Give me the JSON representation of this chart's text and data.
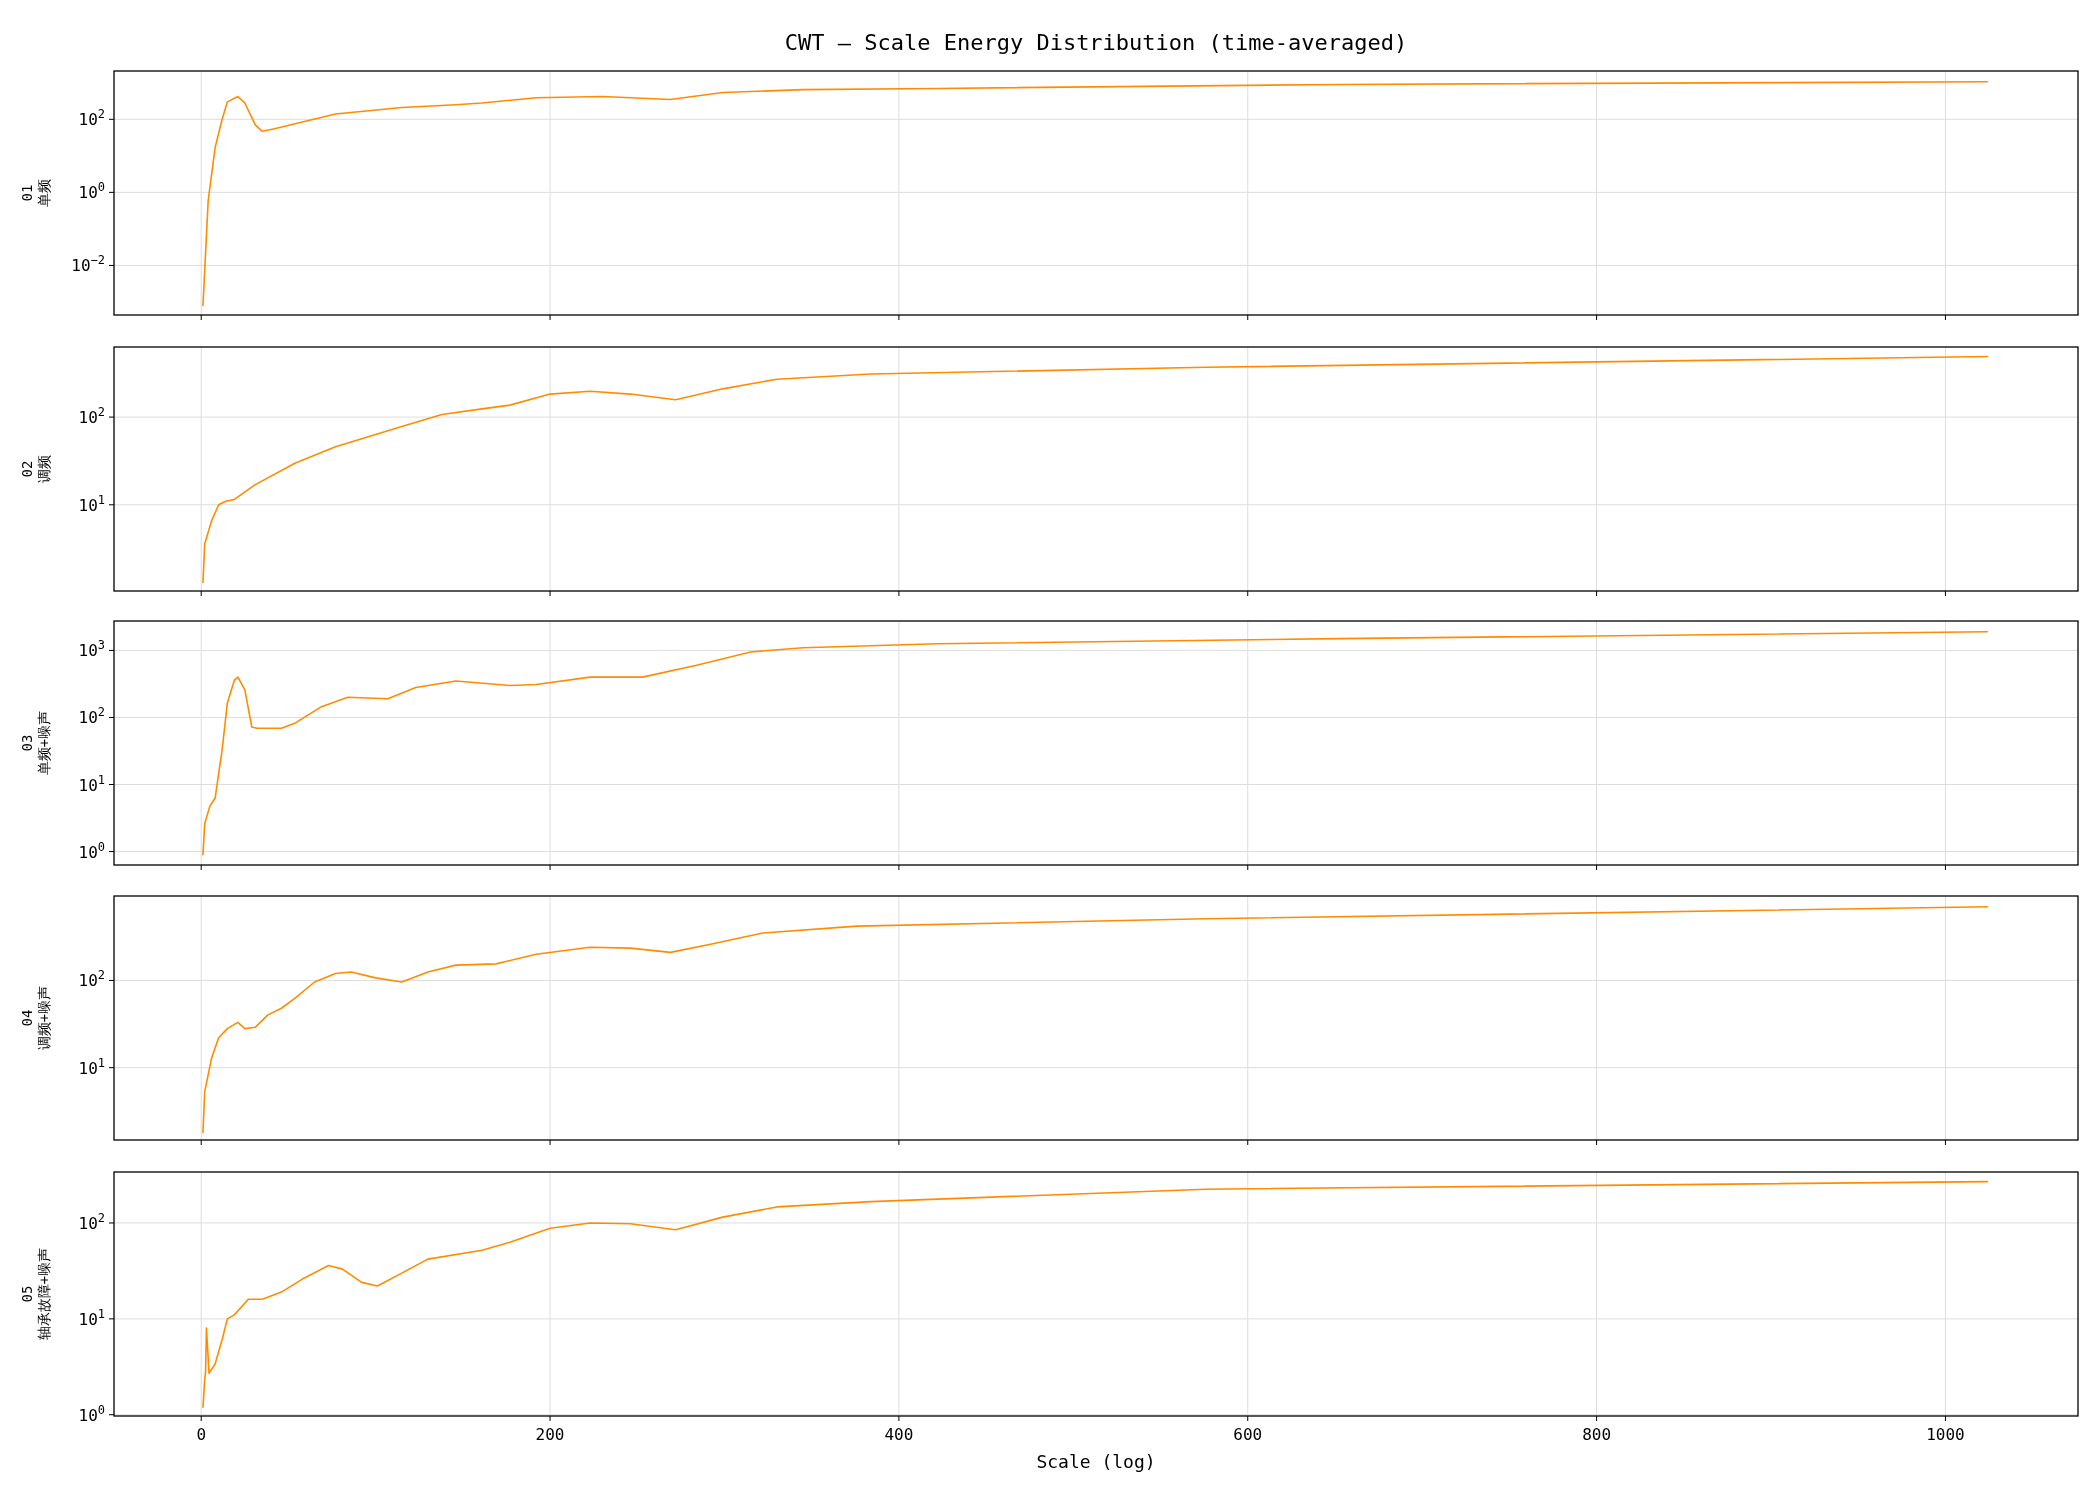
{
  "chart_data": [
    {
      "type": "line",
      "title": "CWT — Scale Energy Distribution (time-averaged)",
      "ylabel": "01\n单频",
      "log": "y",
      "grid": true,
      "tick_labels": "y",
      "xlim": [
        -50,
        1076
      ],
      "xticks": [
        0,
        200,
        400,
        600,
        800,
        1000
      ],
      "ylim": [
        0.00044,
        2100
      ],
      "yticks": [
        {
          "value": 0.01,
          "label": "10$^{−2}$"
        },
        {
          "value": 1,
          "label": "10$^{0}$"
        },
        {
          "value": 100,
          "label": "10$^{2}$"
        }
      ],
      "series": [
        {
          "color": "#ff8c00",
          "x": [
            1,
            4,
            8,
            12,
            15,
            21,
            25,
            31,
            35,
            42,
            77,
            115,
            146,
            161,
            192,
            230,
            269,
            299,
            345,
            422,
            652,
            1024
          ],
          "values": [
            0.0008,
            0.6,
            17,
            100,
            300,
            420,
            280,
            70,
            47,
            55,
            140,
            210,
            250,
            280,
            390,
            420,
            350,
            540,
            650,
            700,
            900,
            1070
          ]
        }
      ]
    },
    {
      "type": "line",
      "ylabel": "02\n调频",
      "log": "y",
      "grid": true,
      "tick_labels": "y",
      "xlim": [
        -50,
        1076
      ],
      "xticks": [
        0,
        200,
        400,
        600,
        800,
        1000
      ],
      "ylim": [
        1.04,
        630
      ],
      "yticks": [
        {
          "value": 10,
          "label": "10$^{1}$"
        },
        {
          "value": 100,
          "label": "10$^{2}$"
        }
      ],
      "series": [
        {
          "color": "#ff8c00",
          "x": [
            1,
            2,
            6,
            10,
            14,
            19,
            31,
            54,
            77,
            115,
            138,
            161,
            177,
            200,
            223,
            246,
            272,
            299,
            330,
            384,
            576,
            1024
          ],
          "values": [
            1.3,
            3.6,
            6.6,
            10,
            11,
            11.5,
            17,
            30,
            46,
            78,
            107,
            124,
            137,
            183,
            197,
            183,
            158,
            210,
            270,
            310,
            370,
            490
          ]
        }
      ]
    },
    {
      "type": "line",
      "ylabel": "03\n单频+噪声",
      "log": "y",
      "grid": true,
      "tick_labels": "y",
      "xlim": [
        -50,
        1076
      ],
      "xticks": [
        0,
        200,
        400,
        600,
        800,
        1000
      ],
      "ylim": [
        0.63,
        2750
      ],
      "yticks": [
        {
          "value": 1,
          "label": "10$^{0}$"
        },
        {
          "value": 10,
          "label": "10$^{1}$"
        },
        {
          "value": 100,
          "label": "10$^{2}$"
        },
        {
          "value": 1000,
          "label": "10$^{3}$"
        }
      ],
      "series": [
        {
          "color": "#ff8c00",
          "x": [
            1,
            2,
            5,
            8,
            12,
            15,
            19,
            21,
            25,
            29,
            32,
            46,
            54,
            69,
            84,
            107,
            123,
            146,
            177,
            192,
            223,
            253,
            284,
            315,
            345,
            422,
            652,
            1024
          ],
          "values": [
            0.9,
            2.6,
            4.8,
            6.3,
            33,
            165,
            360,
            400,
            260,
            72,
            69,
            69,
            83,
            145,
            200,
            190,
            280,
            350,
            300,
            310,
            400,
            400,
            600,
            950,
            1100,
            1260,
            1500,
            1900
          ]
        }
      ]
    },
    {
      "type": "line",
      "ylabel": "04\n调频+噪声",
      "log": "y",
      "grid": true,
      "tick_labels": "y",
      "xlim": [
        -50,
        1076
      ],
      "xticks": [
        0,
        200,
        400,
        600,
        800,
        1000
      ],
      "ylim": [
        1.48,
        930
      ],
      "yticks": [
        {
          "value": 10,
          "label": "10$^{1}$"
        },
        {
          "value": 100,
          "label": "10$^{2}$"
        }
      ],
      "series": [
        {
          "color": "#ff8c00",
          "x": [
            1,
            2,
            6,
            10,
            15,
            21,
            25,
            31,
            38,
            46,
            54,
            65,
            77,
            86,
            100,
            115,
            130,
            146,
            169,
            192,
            223,
            246,
            269,
            292,
            322,
            376,
            576,
            1024
          ],
          "values": [
            1.8,
            5.3,
            13,
            22,
            28,
            33,
            28,
            29,
            40,
            48,
            63,
            96,
            120,
            125,
            107,
            96,
            125,
            150,
            155,
            200,
            240,
            235,
            210,
            260,
            350,
            420,
            510,
            700
          ]
        }
      ]
    },
    {
      "type": "line",
      "ylabel": "05\n轴承故障+噪声",
      "xlabel": "Scale (log)",
      "log": "y",
      "grid": true,
      "xlim": [
        -50,
        1076
      ],
      "xticks": [
        0,
        200,
        400,
        600,
        800,
        1000
      ],
      "ylim": [
        0.97,
        340
      ],
      "yticks": [
        {
          "value": 1,
          "label": "10$^{0}$"
        },
        {
          "value": 10,
          "label": "10$^{1}$"
        },
        {
          "value": 100,
          "label": "10$^{2}$"
        }
      ],
      "series": [
        {
          "color": "#ff8c00",
          "x": [
            1,
            2,
            2.5,
            3,
            4.5,
            8,
            12,
            15,
            19,
            27,
            35,
            46,
            58,
            73,
            81,
            92,
            101,
            115,
            130,
            161,
            177,
            200,
            223,
            246,
            272,
            299,
            330,
            384,
            576,
            1024
          ],
          "values": [
            1.2,
            2.3,
            2.8,
            8,
            2.7,
            3.4,
            6.1,
            10,
            11,
            16,
            16,
            19,
            26,
            36,
            33,
            24,
            22,
            30,
            42,
            52,
            63,
            88,
            100,
            98,
            85,
            115,
            147,
            167,
            225,
            270
          ]
        }
      ]
    }
  ]
}
